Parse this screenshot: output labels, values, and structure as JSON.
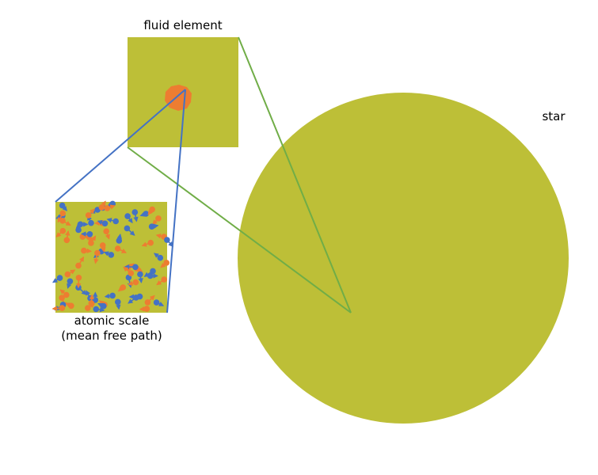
{
  "labels": {
    "fluid_element": "fluid element",
    "star": "star",
    "atomic_line1": "atomic scale",
    "atomic_line2": "(mean free path)"
  },
  "colors": {
    "fill": "#BDBF37",
    "blue": "#4472C4",
    "orange": "#ED7D31",
    "green": "#70AD47",
    "background": "#FFFFFF"
  }
}
